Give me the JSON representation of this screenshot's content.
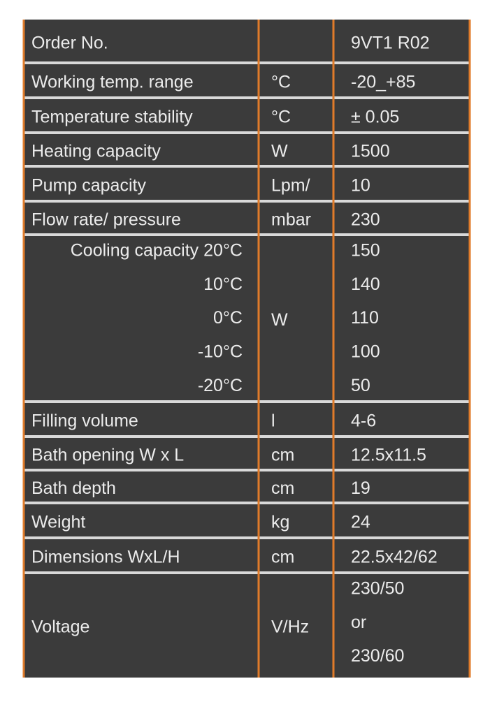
{
  "table": {
    "rows": [
      {
        "label": "Order No.",
        "value": "9VT1 R02"
      },
      {
        "label": "Working temp. range",
        "unit": "°C",
        "value": "-20_+85"
      },
      {
        "label": "Temperature stability",
        "unit": "°C",
        "value": "± 0.05"
      },
      {
        "label": "Heating capacity",
        "unit": "W",
        "value": "1500"
      },
      {
        "label": "Pump capacity",
        "unit": "Lpm/",
        "value": "10"
      },
      {
        "label": "Flow rate/ pressure",
        "unit": "mbar",
        "value": "230"
      },
      {
        "labels": [
          "Cooling capacity 20°C",
          "10°C",
          "0°C",
          "-10°C",
          "-20°C"
        ],
        "unit": "W",
        "values": [
          "150",
          "140",
          "110",
          "100",
          "50"
        ]
      },
      {
        "label": "Filling volume",
        "unit": "l",
        "value": "4-6"
      },
      {
        "label": "Bath opening W x L",
        "unit": "cm",
        "value": "12.5x11.5"
      },
      {
        "label": "Bath depth",
        "unit": "cm",
        "value": "19"
      },
      {
        "label": "Weight",
        "unit": "kg",
        "value": "24"
      },
      {
        "label": "Dimensions WxL/H",
        "unit": "cm",
        "value": "22.5x42/62"
      },
      {
        "label": "Voltage",
        "unit": "V/Hz",
        "values": [
          "230/50",
          "or",
          "230/60"
        ]
      }
    ]
  }
}
